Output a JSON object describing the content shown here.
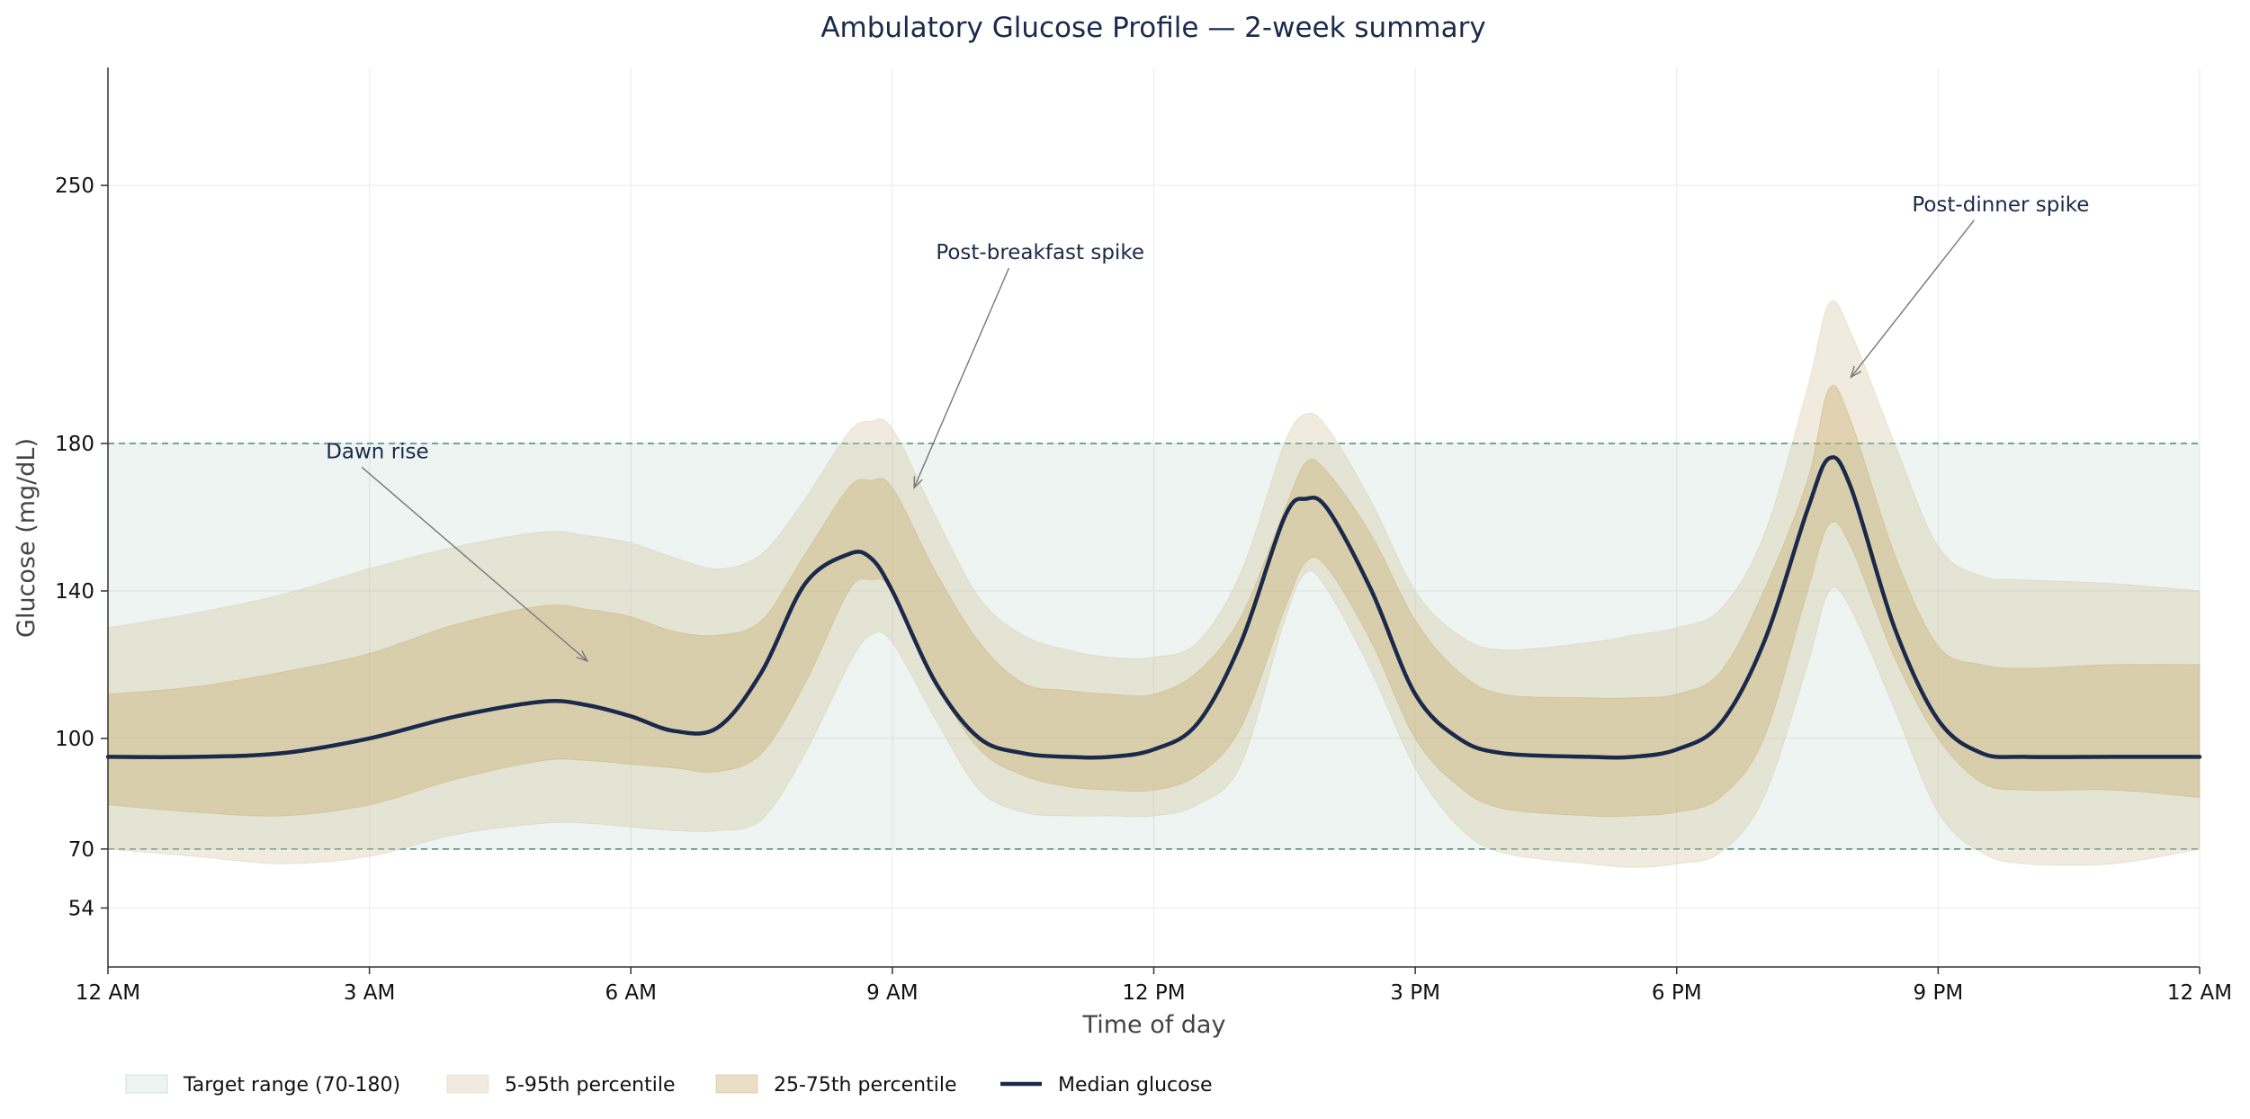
{
  "chart_data": {
    "type": "area",
    "title": "Ambulatory Glucose Profile — 2-week summary",
    "xlabel": "Time of day",
    "ylabel": "Glucose (mg/dL)",
    "xlim": [
      0,
      24
    ],
    "ylim": [
      38,
      282
    ],
    "x_ticks": [
      {
        "value": 0,
        "label": "12 AM"
      },
      {
        "value": 3,
        "label": "3 AM"
      },
      {
        "value": 6,
        "label": "6 AM"
      },
      {
        "value": 9,
        "label": "9 AM"
      },
      {
        "value": 12,
        "label": "12 PM"
      },
      {
        "value": 15,
        "label": "3 PM"
      },
      {
        "value": 18,
        "label": "6 PM"
      },
      {
        "value": 21,
        "label": "9 PM"
      },
      {
        "value": 24,
        "label": "12 AM"
      }
    ],
    "y_ticks": [
      {
        "value": 54,
        "label": "54"
      },
      {
        "value": 70,
        "label": "70"
      },
      {
        "value": 100,
        "label": "100"
      },
      {
        "value": 140,
        "label": "140"
      },
      {
        "value": 180,
        "label": "180"
      },
      {
        "value": 250,
        "label": "250"
      }
    ],
    "grid": true,
    "target_range": {
      "low": 70,
      "high": 180,
      "label": "Target range (70-180)",
      "color": "#5b9a8b"
    },
    "x": [
      0,
      1,
      2,
      3,
      4,
      5,
      5.5,
      6,
      6.5,
      7,
      7.5,
      8,
      8.5,
      8.75,
      9,
      9.5,
      10,
      10.5,
      11,
      11.5,
      12,
      12.5,
      13,
      13.5,
      13.75,
      14,
      14.5,
      15,
      15.5,
      16,
      17,
      17.5,
      18,
      18.5,
      19,
      19.5,
      19.75,
      20,
      20.5,
      21,
      21.5,
      22,
      23,
      24
    ],
    "series": [
      {
        "name": "Median glucose",
        "role": "median",
        "color": "#1b2a4a",
        "values": [
          95,
          95,
          96,
          100,
          106,
          110,
          109,
          106,
          102,
          103,
          118,
          142,
          150,
          149,
          140,
          115,
          100,
          96,
          95,
          95,
          97,
          104,
          126,
          160,
          165,
          162,
          140,
          112,
          100,
          96,
          95,
          95,
          97,
          104,
          126,
          162,
          176,
          168,
          130,
          105,
          96,
          95,
          95,
          95
        ]
      },
      {
        "name": "25-75th percentile",
        "role": "iqr",
        "color": "#c9aa6a",
        "low": [
          82,
          80,
          79,
          82,
          89,
          94,
          94,
          93,
          92,
          91,
          96,
          115,
          140,
          143,
          140,
          115,
          97,
          90,
          87,
          86,
          86,
          90,
          103,
          135,
          148,
          146,
          126,
          100,
          87,
          81,
          79,
          79,
          80,
          84,
          100,
          140,
          158,
          152,
          122,
          100,
          88,
          86,
          86,
          84
        ],
        "high": [
          112,
          114,
          118,
          123,
          131,
          136,
          135,
          133,
          129,
          128,
          132,
          150,
          168,
          170,
          168,
          145,
          126,
          115,
          113,
          112,
          112,
          118,
          133,
          162,
          175,
          172,
          155,
          132,
          118,
          112,
          111,
          111,
          112,
          118,
          140,
          170,
          195,
          186,
          150,
          125,
          120,
          119,
          120,
          120
        ]
      },
      {
        "name": "5-95th percentile",
        "role": "p5_95",
        "color": "#d4c7a0",
        "low": [
          70,
          68,
          66,
          68,
          74,
          77,
          77,
          76,
          75,
          75,
          78,
          96,
          120,
          128,
          126,
          105,
          86,
          80,
          79,
          79,
          79,
          82,
          93,
          132,
          145,
          140,
          118,
          92,
          76,
          69,
          66,
          65,
          66,
          69,
          84,
          120,
          140,
          135,
          108,
          80,
          69,
          66,
          66,
          70
        ],
        "high": [
          130,
          134,
          139,
          146,
          152,
          156,
          155,
          153,
          149,
          146,
          150,
          165,
          183,
          186,
          184,
          160,
          138,
          128,
          124,
          122,
          122,
          126,
          145,
          180,
          188,
          184,
          164,
          140,
          128,
          124,
          126,
          128,
          130,
          135,
          155,
          195,
          218,
          210,
          180,
          152,
          144,
          143,
          142,
          140
        ]
      }
    ],
    "annotations": [
      {
        "text": "Dawn rise",
        "x": 5.5,
        "y": 121,
        "text_x": 2.5,
        "text_y": 176
      },
      {
        "text": "Post-breakfast spike",
        "x": 9.25,
        "y": 168,
        "text_x": 9.5,
        "text_y": 230
      },
      {
        "text": "Post-dinner spike",
        "x": 20,
        "y": 198,
        "text_x": 20.7,
        "text_y": 243
      }
    ],
    "legend": {
      "position": "bottom-left",
      "entries": [
        {
          "label": "Target range (70-180)",
          "kind": "target"
        },
        {
          "label": "5-95th percentile",
          "kind": "p5_95"
        },
        {
          "label": "25-75th percentile",
          "kind": "iqr"
        },
        {
          "label": "Median glucose",
          "kind": "median"
        }
      ]
    }
  }
}
